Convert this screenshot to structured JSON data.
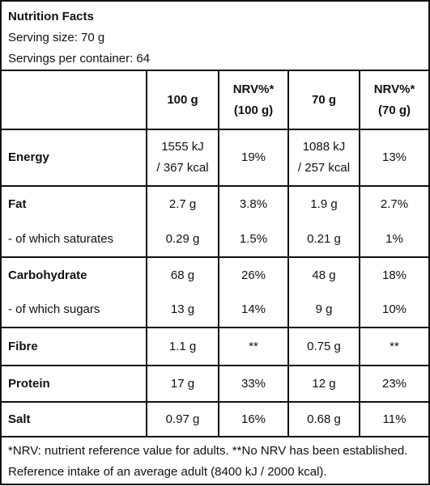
{
  "header": {
    "title": "Nutrition Facts",
    "serving_size": "Serving size: 70 g",
    "servings": "Servings per container: 64"
  },
  "table": {
    "columns": [
      "100 g",
      "NRV%*\n(100 g)",
      "70 g",
      "NRV%*\n(70 g)"
    ],
    "rows": [
      {
        "label": "Energy",
        "cells": [
          "1555 kJ\n/ 367 kcal",
          "19%",
          "1088 kJ\n/ 257 kcal",
          "13%"
        ]
      },
      {
        "label": "Fat",
        "cells": [
          "2.7 g",
          "3.8%",
          "1.9 g",
          "2.7%"
        ]
      },
      {
        "label": "- of which saturates",
        "cells": [
          "0.29 g",
          "1.5%",
          "0.21 g",
          "1%"
        ]
      },
      {
        "label": "Carbohydrate",
        "cells": [
          "68 g",
          "26%",
          "48 g",
          "18%"
        ]
      },
      {
        "label": "- of which sugars",
        "cells": [
          "13 g",
          "14%",
          "9 g",
          "10%"
        ]
      },
      {
        "label": "Fibre",
        "cells": [
          "1.1 g",
          "**",
          "0.75 g",
          "**"
        ]
      },
      {
        "label": "Protein",
        "cells": [
          "17 g",
          "33%",
          "12 g",
          "23%"
        ]
      },
      {
        "label": "Salt",
        "cells": [
          "0.97 g",
          "16%",
          "0.68 g",
          "11%"
        ]
      }
    ]
  },
  "footer": {
    "lines": [
      "*NRV: nutrient reference value for adults. **No NRV has been established.",
      "Reference intake of an average adult (8400 kJ / 2000 kcal)."
    ]
  }
}
